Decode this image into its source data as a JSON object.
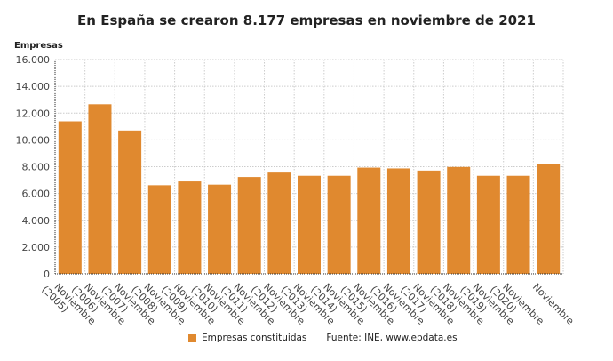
{
  "chart_data": {
    "type": "bar",
    "title": "En España se crearon 8.177 empresas en noviembre de 2021",
    "ylabel": "Empresas",
    "xlabel": "",
    "ylim": [
      0,
      16000
    ],
    "yticks": [
      "0",
      "2.000",
      "4.000",
      "6.000",
      "8.000",
      "10.000",
      "12.000",
      "14.000",
      "16.000"
    ],
    "grid": true,
    "categories": [
      "Noviembre (2005)",
      "Noviembre (2006)",
      "Noviembre (2007)",
      "Noviembre (2008)",
      "Noviembre (2009)",
      "Noviembre (2010)",
      "Noviembre (2011)",
      "Noviembre (2012)",
      "Noviembre (2013)",
      "Noviembre (2014)",
      "Noviembre (2015)",
      "Noviembre (2016)",
      "Noviembre (2017)",
      "Noviembre (2018)",
      "Noviembre (2019)",
      "Noviembre (2020)",
      "Noviembre"
    ],
    "series": [
      {
        "name": "Empresas constituidas",
        "color": "#e0892f",
        "values": [
          11385,
          12660,
          10700,
          6615,
          6900,
          6660,
          7230,
          7560,
          7320,
          7320,
          7930,
          7870,
          7710,
          7980,
          7320,
          7320,
          8177
        ]
      }
    ],
    "legend": "bottom",
    "source": "Fuente: INE, www.epdata.es"
  }
}
